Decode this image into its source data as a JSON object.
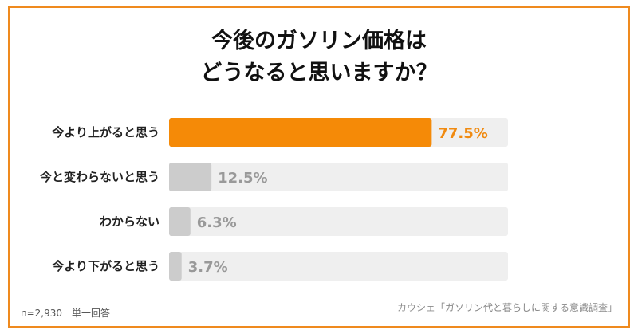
{
  "title": {
    "line1": "今後のガソリン価格は",
    "line2": "どうなると思いますか？"
  },
  "chart_data": {
    "type": "bar",
    "orientation": "horizontal",
    "categories": [
      "今より上がると思う",
      "今と変わらないと思う",
      "わからない",
      "今より下がると思う"
    ],
    "values": [
      77.5,
      12.5,
      6.3,
      3.7
    ],
    "value_labels": [
      "77.5%",
      "12.5%",
      "6.3%",
      "3.7%"
    ],
    "xlim": [
      0,
      100
    ],
    "colors": {
      "highlight": "#f58a07",
      "normal": "#cccccc",
      "track": "#efefef",
      "highlight_label": "#f08a10",
      "normal_label": "#999999"
    },
    "highlight_index": 0
  },
  "footer": {
    "sample": "n=2,930　単一回答",
    "source": "カウシェ「ガソリン代と暮らしに関する意識調査」"
  },
  "colors": {
    "border": "#ef8a1e"
  }
}
